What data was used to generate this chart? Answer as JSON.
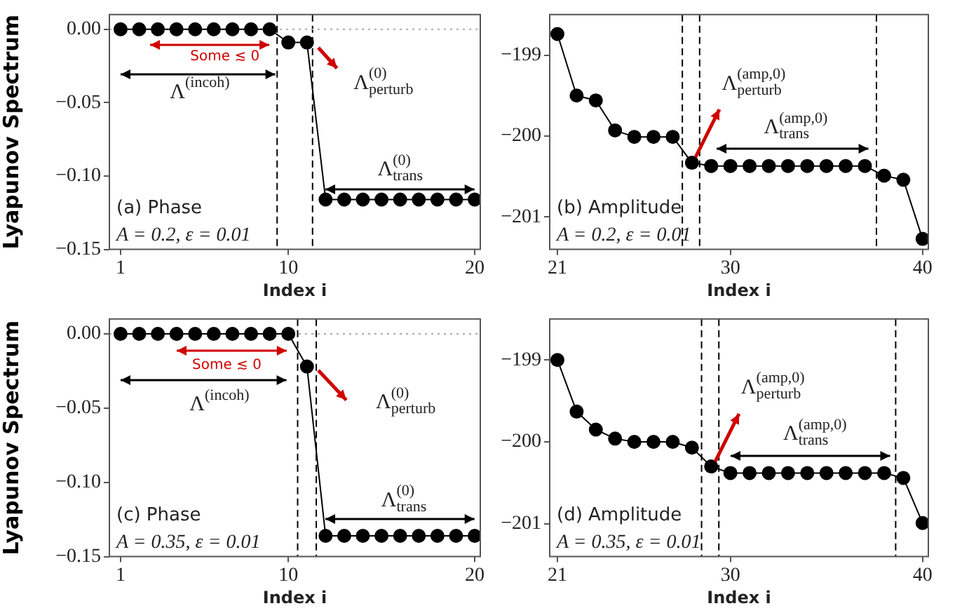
{
  "chart_data": [
    {
      "type": "line",
      "xlabel": "Index i",
      "ylabel": "Lyapunov Spectrum",
      "x": [
        1,
        2,
        3,
        4,
        5,
        6,
        7,
        8,
        9,
        10,
        11,
        12,
        13,
        14,
        15,
        16,
        17,
        18,
        19,
        20
      ],
      "values": [
        0,
        0,
        0,
        0,
        0,
        0,
        0,
        0,
        0,
        -0.009,
        -0.009,
        -0.116,
        -0.116,
        -0.116,
        -0.116,
        -0.116,
        -0.116,
        -0.116,
        -0.116,
        -0.116
      ],
      "color": "#000000",
      "xlim": [
        0.4,
        20.3
      ],
      "ylim": [
        -0.15,
        0.01
      ],
      "xticks": [
        1,
        10,
        20
      ],
      "yticks": [
        {
          "value": 0,
          "label": "0.00"
        },
        {
          "value": -0.05,
          "label": "−0.05"
        },
        {
          "value": -0.1,
          "label": "−0.10"
        },
        {
          "value": -0.15,
          "label": "−0.15"
        }
      ],
      "ref_lines": [
        {
          "axis": "x",
          "value": 9.4,
          "line_style": "dashed",
          "color": "#000000"
        },
        {
          "axis": "x",
          "value": 11.3,
          "line_style": "dashed",
          "color": "#000000"
        },
        {
          "axis": "y",
          "value": 0,
          "line_style": "dotted",
          "color": "#aaaaaa"
        }
      ],
      "annotations": [
        "Some ≲ 0",
        "Λ$^{(incoh)}$",
        "Λ$^{(0)}$$_{perturb}$",
        "Λ$^{(0)}$$_{trans}$",
        "(a) Phase",
        "A = 0.2, ε = 0.01"
      ],
      "marker": "circle",
      "line_style": "solid"
    },
    {
      "type": "line",
      "xlabel": "Index i",
      "x": [
        21,
        22,
        23,
        24,
        25,
        26,
        27,
        28,
        29,
        30,
        31,
        32,
        33,
        34,
        35,
        36,
        37,
        38,
        39,
        40
      ],
      "values": [
        -198.74,
        -199.5,
        -199.56,
        -199.93,
        -200.01,
        -200.01,
        -200.01,
        -200.33,
        -200.37,
        -200.37,
        -200.37,
        -200.37,
        -200.37,
        -200.37,
        -200.37,
        -200.37,
        -200.37,
        -200.49,
        -200.54,
        -201.27
      ],
      "color": "#000000",
      "xlim": [
        20.6,
        40.3
      ],
      "ylim": [
        -201.4,
        -198.5
      ],
      "xticks": [
        21,
        30,
        40
      ],
      "yticks": [
        {
          "value": -199,
          "label": "−199"
        },
        {
          "value": -200,
          "label": "−200"
        },
        {
          "value": -201,
          "label": "−201"
        }
      ],
      "ref_lines": [
        {
          "axis": "x",
          "value": 27.5,
          "line_style": "dashed",
          "color": "#000000"
        },
        {
          "axis": "x",
          "value": 28.4,
          "line_style": "dashed",
          "color": "#000000"
        },
        {
          "axis": "x",
          "value": 37.6,
          "line_style": "dashed",
          "color": "#000000"
        }
      ],
      "annotations": [
        {
          "text": "Λ$^{(amp,0)}$$_{perturb}$",
          "x": 28,
          "y": -200.33
        },
        "Λ$^{(amp,0)}$$_{trans}$",
        "(b) Amplitude",
        "A = 0.2, ε = 0.01"
      ],
      "marker": "circle",
      "line_style": "solid"
    },
    {
      "type": "line",
      "xlabel": "Index i",
      "ylabel": "Lyapunov Spectrum",
      "x": [
        1,
        2,
        3,
        4,
        5,
        6,
        7,
        8,
        9,
        10,
        11,
        12,
        13,
        14,
        15,
        16,
        17,
        18,
        19,
        20
      ],
      "values": [
        0,
        0,
        0,
        0,
        0,
        0,
        0,
        0,
        0,
        0,
        -0.022,
        -0.136,
        -0.136,
        -0.136,
        -0.136,
        -0.136,
        -0.136,
        -0.136,
        -0.136,
        -0.136
      ],
      "color": "#000000",
      "xlim": [
        0.4,
        20.3
      ],
      "ylim": [
        -0.15,
        0.01
      ],
      "xticks": [
        1,
        10,
        20
      ],
      "yticks": [
        {
          "value": 0,
          "label": "0.00"
        },
        {
          "value": -0.05,
          "label": "−0.05"
        },
        {
          "value": -0.1,
          "label": "−0.10"
        },
        {
          "value": -0.15,
          "label": "−0.15"
        }
      ],
      "ref_lines": [
        {
          "axis": "x",
          "value": 10.5,
          "line_style": "dashed",
          "color": "#000000"
        },
        {
          "axis": "x",
          "value": 11.5,
          "line_style": "dashed",
          "color": "#000000"
        },
        {
          "axis": "y",
          "value": 0,
          "line_style": "dotted",
          "color": "#aaaaaa"
        }
      ],
      "annotations": [
        "Some ≲ 0",
        "Λ$^{(incoh)}$",
        "Λ$^{(0)}$$_{perturb}$",
        "Λ$^{(0)}$$_{trans}$",
        "(c) Phase",
        "A = 0.35, ε = 0.01"
      ],
      "marker": "circle",
      "line_style": "solid"
    },
    {
      "type": "line",
      "xlabel": "Index i",
      "x": [
        21,
        22,
        23,
        24,
        25,
        26,
        27,
        28,
        29,
        30,
        31,
        32,
        33,
        34,
        35,
        36,
        37,
        38,
        39,
        40
      ],
      "values": [
        -199,
        -199.63,
        -199.85,
        -199.96,
        -200,
        -200,
        -200,
        -200.07,
        -200.3,
        -200.38,
        -200.38,
        -200.38,
        -200.38,
        -200.38,
        -200.38,
        -200.38,
        -200.38,
        -200.38,
        -200.44,
        -200.99
      ],
      "color": "#000000",
      "xlim": [
        20.6,
        40.3
      ],
      "ylim": [
        -201.4,
        -198.5
      ],
      "xticks": [
        21,
        30,
        40
      ],
      "yticks": [
        {
          "value": -199,
          "label": "−199"
        },
        {
          "value": -200,
          "label": "−200"
        },
        {
          "value": -201,
          "label": "−201"
        }
      ],
      "ref_lines": [
        {
          "axis": "x",
          "value": 28.5,
          "line_style": "dashed",
          "color": "#000000"
        },
        {
          "axis": "x",
          "value": 29.4,
          "line_style": "dashed",
          "color": "#000000"
        },
        {
          "axis": "x",
          "value": 38.6,
          "line_style": "dashed",
          "color": "#000000"
        }
      ],
      "annotations": [
        {
          "text": "Λ$^{(amp,0)}$$_{perturb}$",
          "x": 29,
          "y": -200.3
        },
        "Λ$^{(amp,0)}$$_{trans}$",
        "(d) Amplitude",
        "A = 0.35, ε = 0.01"
      ],
      "marker": "circle",
      "line_style": "solid"
    }
  ]
}
